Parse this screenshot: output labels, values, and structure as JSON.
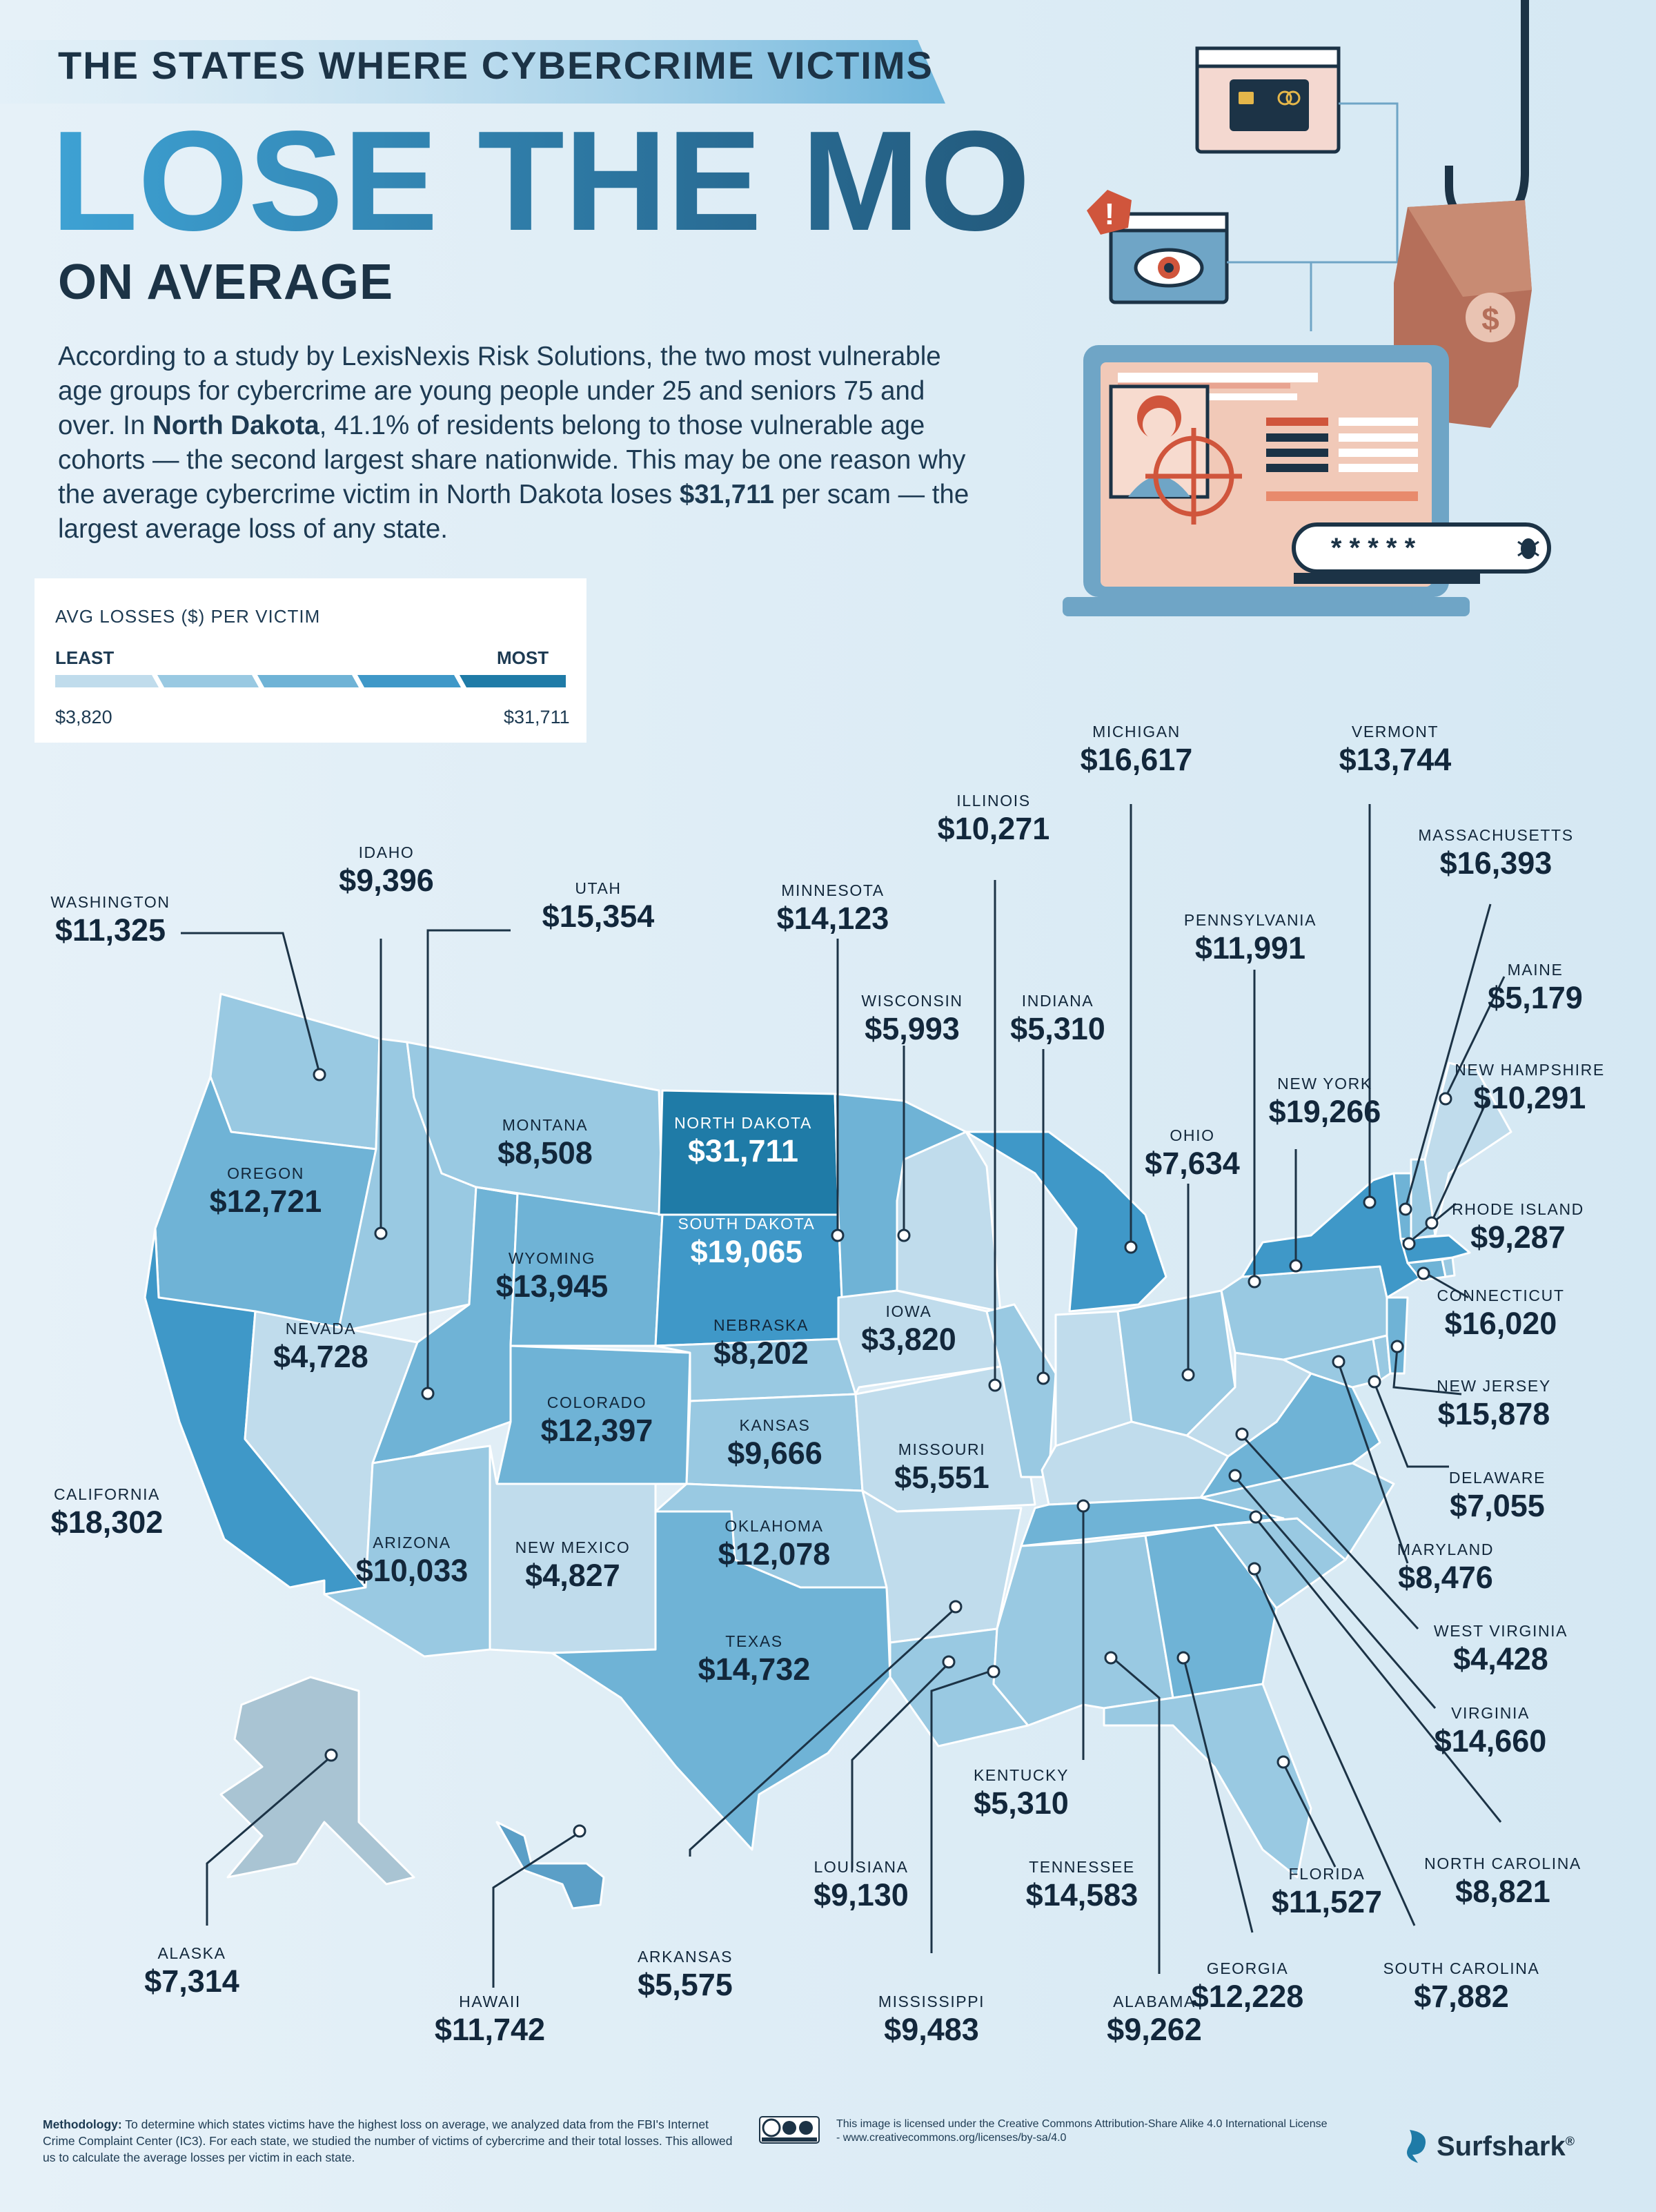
{
  "header": {
    "banner": "THE STATES WHERE CYBERCRIME VICTIMS",
    "headline": "LOSE THE MOST",
    "subheadline": "ON AVERAGE",
    "intro": {
      "p1": "According to a study by LexisNexis Risk Solutions, the two most vulnerable age groups for cybercrime are young people under 25 and seniors 75 and over. In ",
      "p1_bold": "North Dakota",
      "p2": ", 41.1% of residents belong to those vulnerable age cohorts — the second largest share nationwide. This may be one reason why the average cybercrime victim in North Dakota loses ",
      "p2_bold": "$31,711",
      "p3": " per scam — the largest average loss of any state."
    }
  },
  "legend": {
    "title": "AVG LOSSES ($) PER VICTIM",
    "least": "LEAST",
    "most": "MOST",
    "min_label": "$3,820",
    "max_label": "$31,711",
    "min_value": 3820,
    "max_value": 31711,
    "colors": [
      "#c0dcec",
      "#99c9e2",
      "#6fb3d6",
      "#3f98c8",
      "#1f7ba7"
    ]
  },
  "illustration": {
    "password_mask": "* * * * *"
  },
  "states": [
    {
      "name": "WASHINGTON",
      "value": "$11,325",
      "amount": 11325
    },
    {
      "name": "OREGON",
      "value": "$12,721",
      "amount": 12721
    },
    {
      "name": "CALIFORNIA",
      "value": "$18,302",
      "amount": 18302
    },
    {
      "name": "IDAHO",
      "value": "$9,396",
      "amount": 9396
    },
    {
      "name": "NEVADA",
      "value": "$4,728",
      "amount": 4728
    },
    {
      "name": "UTAH",
      "value": "$15,354",
      "amount": 15354
    },
    {
      "name": "ARIZONA",
      "value": "$10,033",
      "amount": 10033
    },
    {
      "name": "MONTANA",
      "value": "$8,508",
      "amount": 8508
    },
    {
      "name": "WYOMING",
      "value": "$13,945",
      "amount": 13945
    },
    {
      "name": "COLORADO",
      "value": "$12,397",
      "amount": 12397
    },
    {
      "name": "NEW MEXICO",
      "value": "$4,827",
      "amount": 4827
    },
    {
      "name": "NORTH DAKOTA",
      "value": "$31,711",
      "amount": 31711
    },
    {
      "name": "SOUTH DAKOTA",
      "value": "$19,065",
      "amount": 19065
    },
    {
      "name": "NEBRASKA",
      "value": "$8,202",
      "amount": 8202
    },
    {
      "name": "KANSAS",
      "value": "$9,666",
      "amount": 9666
    },
    {
      "name": "OKLAHOMA",
      "value": "$12,078",
      "amount": 12078
    },
    {
      "name": "TEXAS",
      "value": "$14,732",
      "amount": 14732
    },
    {
      "name": "MINNESOTA",
      "value": "$14,123",
      "amount": 14123
    },
    {
      "name": "IOWA",
      "value": "$3,820",
      "amount": 3820
    },
    {
      "name": "MISSOURI",
      "value": "$5,551",
      "amount": 5551
    },
    {
      "name": "ARKANSAS",
      "value": "$5,575",
      "amount": 5575
    },
    {
      "name": "LOUISIANA",
      "value": "$9,130",
      "amount": 9130
    },
    {
      "name": "WISCONSIN",
      "value": "$5,993",
      "amount": 5993
    },
    {
      "name": "ILLINOIS",
      "value": "$10,271",
      "amount": 10271
    },
    {
      "name": "MICHIGAN",
      "value": "$16,617",
      "amount": 16617
    },
    {
      "name": "INDIANA",
      "value": "$5,310",
      "amount": 5310
    },
    {
      "name": "OHIO",
      "value": "$7,634",
      "amount": 7634
    },
    {
      "name": "KENTUCKY",
      "value": "$5,310",
      "amount": 5310
    },
    {
      "name": "TENNESSEE",
      "value": "$14,583",
      "amount": 14583
    },
    {
      "name": "MISSISSIPPI",
      "value": "$9,483",
      "amount": 9483
    },
    {
      "name": "ALABAMA",
      "value": "$9,262",
      "amount": 9262
    },
    {
      "name": "GEORGIA",
      "value": "$12,228",
      "amount": 12228
    },
    {
      "name": "FLORIDA",
      "value": "$11,527",
      "amount": 11527
    },
    {
      "name": "SOUTH CAROLINA",
      "value": "$7,882",
      "amount": 7882
    },
    {
      "name": "NORTH CAROLINA",
      "value": "$8,821",
      "amount": 8821
    },
    {
      "name": "VIRGINIA",
      "value": "$14,660",
      "amount": 14660
    },
    {
      "name": "WEST VIRGINIA",
      "value": "$4,428",
      "amount": 4428
    },
    {
      "name": "MARYLAND",
      "value": "$8,476",
      "amount": 8476
    },
    {
      "name": "DELAWARE",
      "value": "$7,055",
      "amount": 7055
    },
    {
      "name": "NEW JERSEY",
      "value": "$15,878",
      "amount": 15878
    },
    {
      "name": "PENNSYLVANIA",
      "value": "$11,991",
      "amount": 11991
    },
    {
      "name": "NEW YORK",
      "value": "$19,266",
      "amount": 19266
    },
    {
      "name": "CONNECTICUT",
      "value": "$16,020",
      "amount": 16020
    },
    {
      "name": "RHODE ISLAND",
      "value": "$9,287",
      "amount": 9287
    },
    {
      "name": "MASSACHUSETTS",
      "value": "$16,393",
      "amount": 16393
    },
    {
      "name": "VERMONT",
      "value": "$13,744",
      "amount": 13744
    },
    {
      "name": "NEW HAMPSHIRE",
      "value": "$10,291",
      "amount": 10291
    },
    {
      "name": "MAINE",
      "value": "$5,179",
      "amount": 5179
    },
    {
      "name": "ALASKA",
      "value": "$7,314",
      "amount": 7314
    },
    {
      "name": "HAWAII",
      "value": "$11,742",
      "amount": 11742
    }
  ],
  "footer": {
    "methodology_label": "Methodology:",
    "methodology_text": " To determine which states victims have the highest loss on average, we analyzed data from the FBI's Internet Crime Complaint Center (IC3). For each state, we studied the number of victims of cybercrime and their total losses. This allowed us to calculate the average losses per victim in each state.",
    "license": "This image is licensed under the Creative Commons Attribution-Share Alike 4.0 International License - www.creativecommons.org/licenses/by-sa/4.0",
    "brand": "Surfshark",
    "brand_mark": "®"
  }
}
